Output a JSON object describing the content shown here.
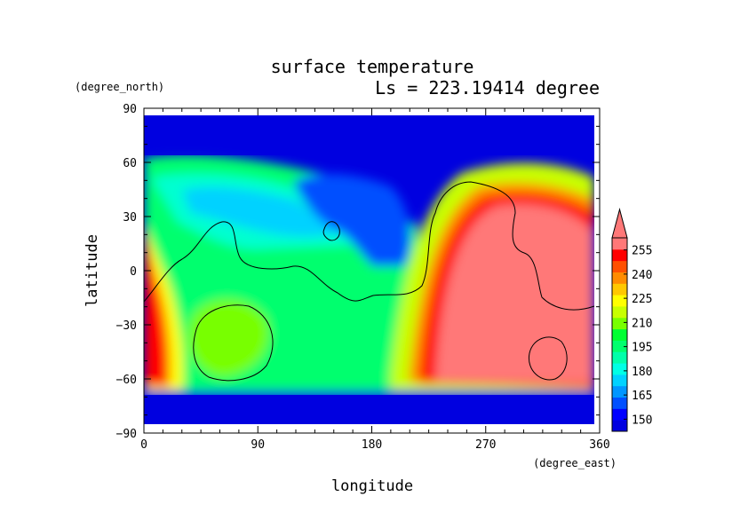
{
  "chart_data": {
    "type": "heatmap",
    "title": "surface temperature",
    "subtitle": "Ls = 223.19414 degree",
    "xlabel": "longitude",
    "ylabel": "latitude",
    "x_units": "(degree_east)",
    "y_units": "(degree_north)",
    "xlim": [
      0,
      360
    ],
    "ylim": [
      -90,
      90
    ],
    "x_ticks": [
      0,
      90,
      180,
      270,
      360
    ],
    "y_ticks": [
      -90,
      -60,
      -30,
      0,
      30,
      60,
      90
    ],
    "x_tick_labels": [
      "0",
      "90",
      "180",
      "270",
      "360"
    ],
    "y_tick_labels": [
      "−90",
      "−60",
      "−30",
      "0",
      "30",
      "60",
      "90"
    ],
    "colorbar": {
      "levels": [
        142.5,
        150,
        157.5,
        165,
        172.5,
        180,
        187.5,
        195,
        202.5,
        210,
        217.5,
        225,
        232.5,
        240,
        247.5,
        255,
        262.5
      ],
      "labels": [
        "150",
        "165",
        "180",
        "195",
        "210",
        "225",
        "240",
        "255"
      ],
      "label_values": [
        150,
        165,
        180,
        195,
        210,
        225,
        240,
        255
      ],
      "colors": [
        "#0000e0",
        "#0000ff",
        "#0050ff",
        "#0096ff",
        "#00d2ff",
        "#00ffe6",
        "#00ffaa",
        "#00ff6e",
        "#00ff32",
        "#78ff00",
        "#c8ff00",
        "#ffff00",
        "#ffc800",
        "#ff8c00",
        "#ff5000",
        "#ff0000",
        "#ff7878"
      ],
      "extend": "max"
    },
    "grid": false,
    "legend": "right"
  }
}
